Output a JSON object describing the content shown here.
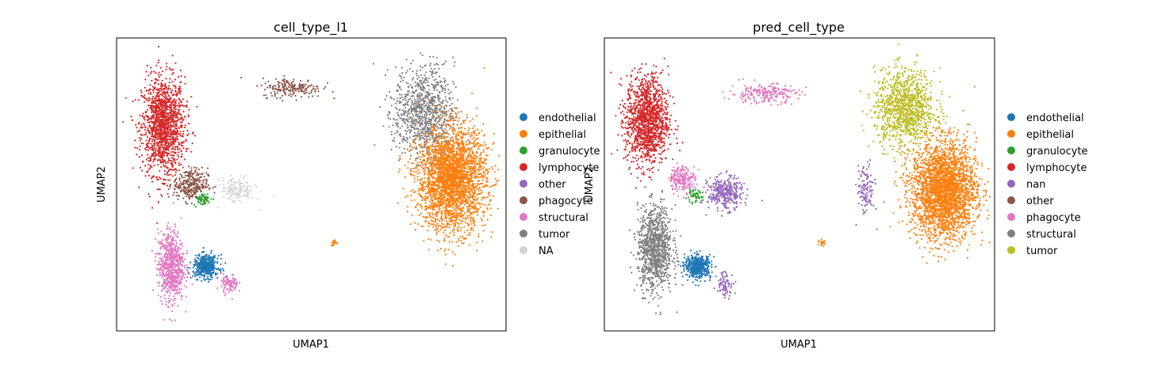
{
  "chart_data": [
    {
      "type": "scatter",
      "title": "cell_type_l1",
      "xlabel": "UMAP1",
      "ylabel": "UMAP2",
      "grid": false,
      "ticks": "none",
      "legend_position": "right",
      "legend": [
        {
          "label": "endothelial",
          "color": "#1f77b4"
        },
        {
          "label": "epithelial",
          "color": "#ff7f0e"
        },
        {
          "label": "granulocyte",
          "color": "#2ca02c"
        },
        {
          "label": "lymphocyte",
          "color": "#d62728"
        },
        {
          "label": "other",
          "color": "#9467bd"
        },
        {
          "label": "phagocyte",
          "color": "#8c564b"
        },
        {
          "label": "structural",
          "color": "#e377c2"
        },
        {
          "label": "tumor",
          "color": "#7f7f7f"
        },
        {
          "label": "NA",
          "color": "#d3d3d3"
        }
      ],
      "clusters": [
        {
          "category": "lymphocyte",
          "approx_center": [
            0.12,
            0.7
          ],
          "spread": [
            0.05,
            0.15
          ],
          "n": 1400
        },
        {
          "category": "phagocyte",
          "approx_center": [
            0.19,
            0.5
          ],
          "spread": [
            0.04,
            0.05
          ],
          "n": 300
        },
        {
          "category": "phagocyte",
          "approx_center": [
            0.45,
            0.83
          ],
          "spread": [
            0.07,
            0.03
          ],
          "n": 200
        },
        {
          "category": "granulocyte",
          "approx_center": [
            0.22,
            0.45
          ],
          "spread": [
            0.02,
            0.02
          ],
          "n": 60
        },
        {
          "category": "structural",
          "approx_center": [
            0.14,
            0.22
          ],
          "spread": [
            0.03,
            0.11
          ],
          "n": 700
        },
        {
          "category": "structural",
          "approx_center": [
            0.29,
            0.16
          ],
          "spread": [
            0.02,
            0.03
          ],
          "n": 90
        },
        {
          "category": "endothelial",
          "approx_center": [
            0.23,
            0.22
          ],
          "spread": [
            0.03,
            0.035
          ],
          "n": 450
        },
        {
          "category": "NA",
          "approx_center": [
            0.31,
            0.48
          ],
          "spread": [
            0.04,
            0.04
          ],
          "n": 150
        },
        {
          "category": "epithelial",
          "approx_center": [
            0.86,
            0.52
          ],
          "spread": [
            0.08,
            0.16
          ],
          "n": 2800
        },
        {
          "category": "tumor",
          "approx_center": [
            0.79,
            0.75
          ],
          "spread": [
            0.07,
            0.14
          ],
          "n": 900
        },
        {
          "category": "epithelial",
          "approx_center": [
            0.56,
            0.3
          ],
          "spread": [
            0.008,
            0.01
          ],
          "n": 20
        }
      ]
    },
    {
      "type": "scatter",
      "title": "pred_cell_type",
      "xlabel": "UMAP1",
      "ylabel": "UMAP2",
      "grid": false,
      "ticks": "none",
      "legend_position": "right",
      "legend": [
        {
          "label": "endothelial",
          "color": "#1f77b4"
        },
        {
          "label": "epithelial",
          "color": "#ff7f0e"
        },
        {
          "label": "granulocyte",
          "color": "#2ca02c"
        },
        {
          "label": "lymphocyte",
          "color": "#d62728"
        },
        {
          "label": "nan",
          "color": "#9467bd"
        },
        {
          "label": "other",
          "color": "#8c564b"
        },
        {
          "label": "phagocyte",
          "color": "#e377c2"
        },
        {
          "label": "structural",
          "color": "#7f7f7f"
        },
        {
          "label": "tumor",
          "color": "#bcbd22"
        }
      ],
      "clusters": [
        {
          "category": "lymphocyte",
          "approx_center": [
            0.11,
            0.72
          ],
          "spread": [
            0.05,
            0.14
          ],
          "n": 1300
        },
        {
          "category": "structural",
          "approx_center": [
            0.13,
            0.28
          ],
          "spread": [
            0.04,
            0.13
          ],
          "n": 1000
        },
        {
          "category": "nan",
          "approx_center": [
            0.31,
            0.47
          ],
          "spread": [
            0.04,
            0.05
          ],
          "n": 350
        },
        {
          "category": "nan",
          "approx_center": [
            0.31,
            0.16
          ],
          "spread": [
            0.02,
            0.04
          ],
          "n": 80
        },
        {
          "category": "phagocyte",
          "approx_center": [
            0.2,
            0.52
          ],
          "spread": [
            0.03,
            0.04
          ],
          "n": 200
        },
        {
          "category": "phagocyte",
          "approx_center": [
            0.41,
            0.81
          ],
          "spread": [
            0.08,
            0.03
          ],
          "n": 220
        },
        {
          "category": "granulocyte",
          "approx_center": [
            0.23,
            0.46
          ],
          "spread": [
            0.02,
            0.02
          ],
          "n": 50
        },
        {
          "category": "endothelial",
          "approx_center": [
            0.24,
            0.22
          ],
          "spread": [
            0.03,
            0.035
          ],
          "n": 450
        },
        {
          "category": "epithelial",
          "approx_center": [
            0.87,
            0.48
          ],
          "spread": [
            0.075,
            0.15
          ],
          "n": 2700
        },
        {
          "category": "tumor",
          "approx_center": [
            0.77,
            0.76
          ],
          "spread": [
            0.07,
            0.12
          ],
          "n": 1100
        },
        {
          "category": "nan",
          "approx_center": [
            0.67,
            0.48
          ],
          "spread": [
            0.02,
            0.08
          ],
          "n": 120
        },
        {
          "category": "epithelial",
          "approx_center": [
            0.56,
            0.3
          ],
          "spread": [
            0.008,
            0.01
          ],
          "n": 20
        }
      ]
    }
  ]
}
